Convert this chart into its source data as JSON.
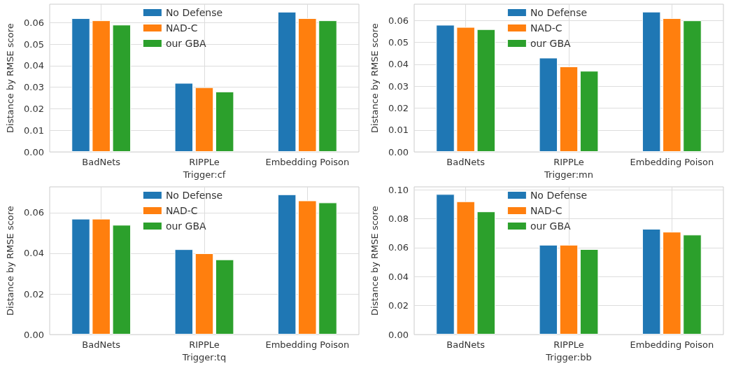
{
  "chart_data": [
    {
      "type": "bar",
      "xlabel": "Trigger:cf",
      "ylabel": "Distance by RMSE score",
      "categories": [
        "BadNets",
        "RIPPLe",
        "Embedding Poison"
      ],
      "series": [
        {
          "name": "No Defense",
          "color": "#1f77b4",
          "values": [
            0.062,
            0.032,
            0.065
          ]
        },
        {
          "name": "NAD-C",
          "color": "#ff7f0e",
          "values": [
            0.061,
            0.03,
            0.062
          ]
        },
        {
          "name": "our GBA",
          "color": "#2ca02c",
          "values": [
            0.059,
            0.028,
            0.061
          ]
        }
      ],
      "ylim": [
        0,
        0.0685
      ],
      "yticks": [
        {
          "value": 0,
          "label": "0.00"
        },
        {
          "value": 0.01,
          "label": "0.01"
        },
        {
          "value": 0.02,
          "label": "0.02"
        },
        {
          "value": 0.03,
          "label": "0.03"
        },
        {
          "value": 0.04,
          "label": "0.04"
        },
        {
          "value": 0.05,
          "label": "0.05"
        },
        {
          "value": 0.06,
          "label": "0.06"
        }
      ],
      "grid": true,
      "legend": "top"
    },
    {
      "type": "bar",
      "xlabel": "Trigger:mn",
      "ylabel": "Distance by RMSE score",
      "categories": [
        "BadNets",
        "RIPPLe",
        "Embedding Poison"
      ],
      "series": [
        {
          "name": "No Defense",
          "color": "#1f77b4",
          "values": [
            0.058,
            0.043,
            0.064
          ]
        },
        {
          "name": "NAD-C",
          "color": "#ff7f0e",
          "values": [
            0.057,
            0.039,
            0.061
          ]
        },
        {
          "name": "our GBA",
          "color": "#2ca02c",
          "values": [
            0.056,
            0.037,
            0.06
          ]
        }
      ],
      "ylim": [
        0,
        0.0674
      ],
      "yticks": [
        {
          "value": 0,
          "label": "0.00"
        },
        {
          "value": 0.01,
          "label": "0.01"
        },
        {
          "value": 0.02,
          "label": "0.02"
        },
        {
          "value": 0.03,
          "label": "0.03"
        },
        {
          "value": 0.04,
          "label": "0.04"
        },
        {
          "value": 0.05,
          "label": "0.05"
        },
        {
          "value": 0.06,
          "label": "0.06"
        }
      ],
      "grid": true,
      "legend": "top"
    },
    {
      "type": "bar",
      "xlabel": "Trigger:tq",
      "ylabel": "Distance by RMSE score",
      "categories": [
        "BadNets",
        "RIPPLe",
        "Embedding Poison"
      ],
      "series": [
        {
          "name": "No Defense",
          "color": "#1f77b4",
          "values": [
            0.057,
            0.042,
            0.069
          ]
        },
        {
          "name": "NAD-C",
          "color": "#ff7f0e",
          "values": [
            0.057,
            0.04,
            0.066
          ]
        },
        {
          "name": "our GBA",
          "color": "#2ca02c",
          "values": [
            0.054,
            0.037,
            0.065
          ]
        }
      ],
      "ylim": [
        0,
        0.0727
      ],
      "yticks": [
        {
          "value": 0,
          "label": "0.00"
        },
        {
          "value": 0.02,
          "label": "0.02"
        },
        {
          "value": 0.04,
          "label": "0.04"
        },
        {
          "value": 0.06,
          "label": "0.06"
        }
      ],
      "grid": true,
      "legend": "top"
    },
    {
      "type": "bar",
      "xlabel": "Trigger:bb",
      "ylabel": "Distance by RMSE score",
      "categories": [
        "BadNets",
        "RIPPLe",
        "Embedding Poison"
      ],
      "series": [
        {
          "name": "No Defense",
          "color": "#1f77b4",
          "values": [
            0.097,
            0.062,
            0.073
          ]
        },
        {
          "name": "NAD-C",
          "color": "#ff7f0e",
          "values": [
            0.092,
            0.062,
            0.071
          ]
        },
        {
          "name": "our GBA",
          "color": "#2ca02c",
          "values": [
            0.085,
            0.059,
            0.069
          ]
        }
      ],
      "ylim": [
        0,
        0.102
      ],
      "yticks": [
        {
          "value": 0,
          "label": "0.00"
        },
        {
          "value": 0.02,
          "label": "0.02"
        },
        {
          "value": 0.04,
          "label": "0.04"
        },
        {
          "value": 0.06,
          "label": "0.06"
        },
        {
          "value": 0.08,
          "label": "0.08"
        },
        {
          "value": 0.1,
          "label": "0.10"
        }
      ],
      "grid": true,
      "legend": "top"
    }
  ]
}
